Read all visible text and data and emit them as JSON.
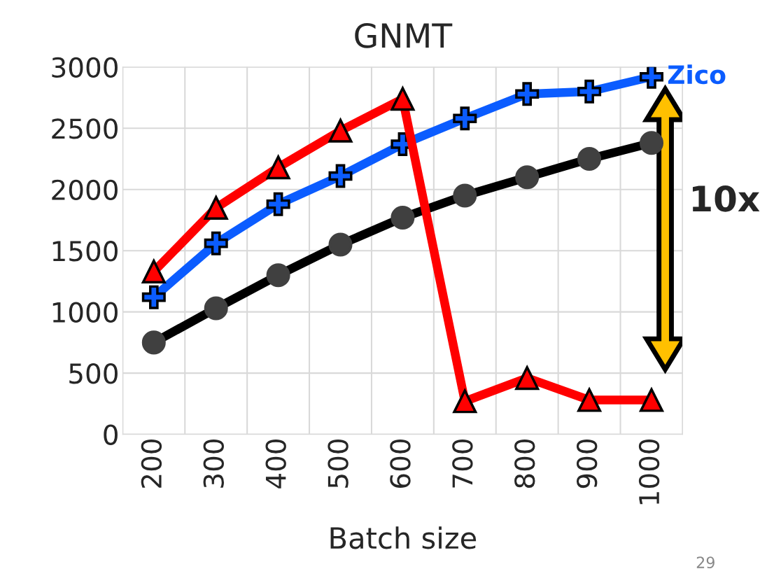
{
  "chart_data": {
    "type": "line",
    "title": "GNMT",
    "xlabel": "Batch size",
    "categories": [
      "200",
      "300",
      "400",
      "500",
      "600",
      "700",
      "800",
      "900",
      "1000"
    ],
    "series": [
      {
        "color": "#000000",
        "marker": "circle",
        "values": [
          750,
          1030,
          1300,
          1550,
          1770,
          1950,
          2100,
          2250,
          2380
        ]
      },
      {
        "name": "Zico",
        "color": "#0b5cff",
        "marker": "cross",
        "values": [
          1120,
          1560,
          1880,
          2110,
          2370,
          2580,
          2780,
          2800,
          2920
        ]
      },
      {
        "color": "#ff0000",
        "marker": "triangle",
        "values": [
          1330,
          1850,
          2180,
          2480,
          2740,
          270,
          460,
          280,
          280
        ]
      }
    ],
    "ylim": [
      0,
      3000
    ],
    "yticks": [
      0,
      500,
      1000,
      1500,
      2000,
      2500,
      3000
    ],
    "grid": true,
    "legend": false,
    "annotations": [
      "10x",
      "29"
    ]
  }
}
